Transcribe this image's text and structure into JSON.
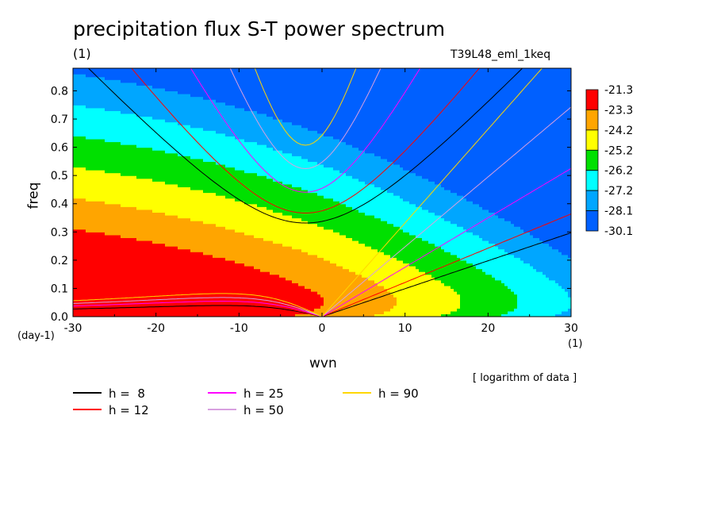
{
  "title": "precipitation flux S-T power spectrum",
  "subtitle": "(1)",
  "run_name": "T39L48_eml_1keq",
  "axes": {
    "xlabel": "wvn",
    "ylabel": "freq",
    "x_unit": "(1)",
    "y_unit": "(day-1)"
  },
  "note": "[ logarithm of data ]",
  "chart_data": {
    "type": "heatmap",
    "title": "precipitation flux S-T power spectrum",
    "xlabel": "wvn",
    "ylabel": "freq",
    "xlim": [
      -30,
      30
    ],
    "ylim": [
      0,
      0.88
    ],
    "x_ticks": [
      -30,
      -20,
      -10,
      0,
      10,
      20,
      30
    ],
    "y_ticks": [
      0.0,
      0.1,
      0.2,
      0.3,
      0.4,
      0.5,
      0.6,
      0.7,
      0.8
    ],
    "x_tick_labels": [
      "-30",
      "-20",
      "-10",
      "0",
      "10",
      "20",
      "30"
    ],
    "y_tick_labels": [
      "0.0",
      "0.1",
      "0.2",
      "0.3",
      "0.4",
      "0.5",
      "0.6",
      "0.7",
      "0.8"
    ],
    "colorbar": {
      "levels": [
        -21.3,
        -23.3,
        -24.2,
        -25.2,
        -26.2,
        -27.2,
        -28.1,
        -30.1
      ],
      "labels": [
        "-21.3",
        "-23.3",
        "-24.2",
        "-25.2",
        "-26.2",
        "-27.2",
        "-28.1",
        "-30.1"
      ],
      "colors": [
        "#ff0000",
        "#ffa500",
        "#ffff00",
        "#00e000",
        "#00ffff",
        "#00a6ff",
        "#0060ff"
      ]
    },
    "dispersion_curves": [
      {
        "name": "h =  8",
        "h": 8,
        "color": "#000000"
      },
      {
        "name": "h = 12",
        "h": 12,
        "color": "#ff0000"
      },
      {
        "name": "h = 25",
        "h": 25,
        "color": "#ff00ff"
      },
      {
        "name": "h = 50",
        "h": 50,
        "color": "#d8a0e0"
      },
      {
        "name": "h = 90",
        "h": 90,
        "color": "#ffd700"
      }
    ]
  }
}
